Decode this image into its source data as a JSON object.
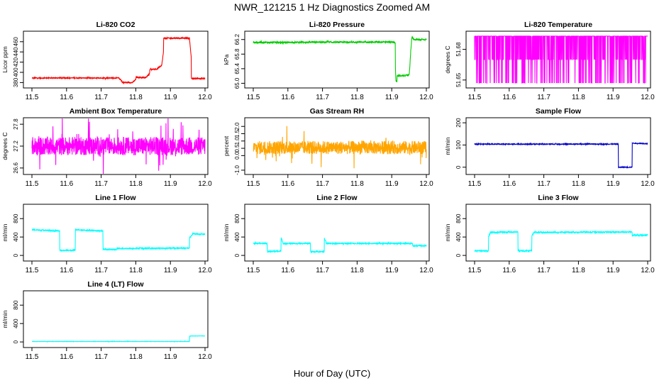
{
  "figure": {
    "title": "NWR_121215  1 Hz Diagnostics Zoomed AM",
    "xlabel": "Hour of Day (UTC)"
  },
  "chart_data": [
    {
      "type": "line",
      "title": "Li-820 CO2",
      "ylabel": "Licor ppm",
      "color": "#ff0000",
      "xlim": [
        11.5,
        12.0
      ],
      "ylim": [
        375,
        475
      ],
      "xticks": [
        "11.5",
        "11.6",
        "11.7",
        "11.8",
        "11.9",
        "12.0"
      ],
      "yticks": [
        {
          "v": 380,
          "label": "380"
        },
        {
          "v": 400,
          "label": "400"
        },
        {
          "v": 420,
          "label": "420"
        },
        {
          "v": 440,
          "label": "440"
        },
        {
          "v": 460,
          "label": "460"
        }
      ],
      "x": [
        11.5,
        11.75,
        11.75,
        11.76,
        11.76,
        11.79,
        11.79,
        11.8,
        11.8,
        11.83,
        11.83,
        11.84,
        11.84,
        11.86,
        11.86,
        11.875,
        11.875,
        11.88,
        11.88,
        11.955,
        11.955,
        11.96,
        11.96,
        12.0
      ],
      "y": [
        389,
        389,
        389,
        383,
        380,
        380,
        380,
        386,
        390,
        390,
        390,
        398,
        406,
        406,
        406,
        414,
        414,
        440,
        467,
        467,
        467,
        430,
        388,
        388
      ],
      "noise": 1.0
    },
    {
      "type": "line",
      "title": "Li-820 Pressure",
      "ylabel": "kPa",
      "color": "#00cc00",
      "xlim": [
        11.5,
        12.0
      ],
      "ylim": [
        64.95,
        66.35
      ],
      "xticks": [
        "11.5",
        "11.6",
        "11.7",
        "11.8",
        "11.9",
        "12.0"
      ],
      "yticks": [
        {
          "v": 65.0,
          "label": "65.0"
        },
        {
          "v": 65.4,
          "label": "65.4"
        },
        {
          "v": 65.8,
          "label": "65.8"
        },
        {
          "v": 66.2,
          "label": "66.2"
        }
      ],
      "x": [
        11.5,
        11.905,
        11.91,
        11.91,
        11.912,
        11.915,
        11.915,
        11.95,
        11.952,
        11.955,
        11.958,
        11.96,
        11.965,
        12.0
      ],
      "y": [
        66.12,
        66.13,
        66.1,
        65.6,
        65.05,
        65.05,
        65.2,
        65.22,
        65.4,
        65.9,
        66.25,
        66.25,
        66.2,
        66.2
      ],
      "noise": 0.02
    },
    {
      "type": "line",
      "title": "Li-820 Temperature",
      "ylabel": "degrees C",
      "color": "#ff00ff",
      "xlim": [
        11.5,
        12.0
      ],
      "ylim": [
        51.645,
        51.695
      ],
      "xticks": [
        "11.5",
        "11.6",
        "11.7",
        "11.8",
        "11.9",
        "12.0"
      ],
      "yticks": [
        {
          "v": 51.65,
          "label": "51.65"
        },
        {
          "v": 51.68,
          "label": "51.68"
        }
      ],
      "x": [
        11.5,
        12.0
      ],
      "y": [
        51.67,
        51.67
      ],
      "noise": 0.0,
      "levels": [
        51.647,
        51.67,
        51.693
      ]
    },
    {
      "type": "line",
      "title": "Ambient Box Temperature",
      "ylabel": "degrees C",
      "color": "#ff00ff",
      "xlim": [
        11.5,
        12.0
      ],
      "ylim": [
        26.5,
        27.9
      ],
      "xticks": [
        "11.5",
        "11.6",
        "11.7",
        "11.8",
        "11.9",
        "12.0"
      ],
      "yticks": [
        {
          "v": 26.6,
          "label": "26.6"
        },
        {
          "v": 27.2,
          "label": "27.2"
        },
        {
          "v": 27.8,
          "label": "27.8"
        }
      ],
      "x": [
        11.5,
        12.0
      ],
      "y": [
        27.2,
        27.2
      ],
      "noise": 0.25
    },
    {
      "type": "line",
      "title": "Gas Stream RH",
      "ylabel": "percent",
      "color": "#ffa500",
      "xlim": [
        11.5,
        12.0
      ],
      "ylim": [
        -1.1,
        2.4
      ],
      "xticks": [
        "11.5",
        "11.6",
        "11.7",
        "11.8",
        "11.9",
        "12.0"
      ],
      "yticks": [
        {
          "v": -1.0,
          "label": "-1.0"
        },
        {
          "v": 0.0,
          "label": "0.0"
        },
        {
          "v": 0.5,
          "label": "0.5"
        },
        {
          "v": 1.0,
          "label": "1.0"
        },
        {
          "v": 1.5,
          "label": "1.5"
        },
        {
          "v": 2.0,
          "label": "2.0"
        }
      ],
      "x": [
        11.5,
        12.0
      ],
      "y": [
        0.55,
        0.55
      ],
      "noise": 0.45
    },
    {
      "type": "line",
      "title": "Sample Flow",
      "ylabel": "ml/min",
      "color": "#0000cc",
      "xlim": [
        11.5,
        12.0
      ],
      "ylim": [
        -20,
        210
      ],
      "xticks": [
        "11.5",
        "11.6",
        "11.7",
        "11.8",
        "11.9",
        "12.0"
      ],
      "yticks": [
        {
          "v": 0,
          "label": "0"
        },
        {
          "v": 100,
          "label": "100"
        },
        {
          "v": 200,
          "label": "200"
        }
      ],
      "x": [
        11.5,
        11.91,
        11.915,
        11.915,
        11.95,
        11.955,
        11.955,
        11.96,
        12.0
      ],
      "y": [
        104,
        104,
        104,
        0,
        0,
        0,
        108,
        108,
        106
      ],
      "noise": 2
    },
    {
      "type": "line",
      "title": "Line 1 Flow",
      "ylabel": "ml/min",
      "color": "#00ffff",
      "xlim": [
        11.5,
        12.0
      ],
      "ylim": [
        -60,
        1050
      ],
      "xticks": [
        "11.5",
        "11.6",
        "11.7",
        "11.8",
        "11.9",
        "12.0"
      ],
      "yticks": [
        {
          "v": 0,
          "label": "0"
        },
        {
          "v": 400,
          "label": "400"
        },
        {
          "v": 800,
          "label": "800"
        }
      ],
      "x": [
        11.5,
        11.58,
        11.58,
        11.625,
        11.625,
        11.705,
        11.705,
        11.745,
        11.745,
        11.955,
        11.955,
        11.965,
        12.0
      ],
      "y": [
        560,
        530,
        110,
        110,
        560,
        530,
        130,
        130,
        150,
        160,
        380,
        470,
        460
      ],
      "noise": 12
    },
    {
      "type": "line",
      "title": "Line 2 Flow",
      "ylabel": "ml/min",
      "color": "#00ffff",
      "xlim": [
        11.5,
        12.0
      ],
      "ylim": [
        -60,
        1050
      ],
      "xticks": [
        "11.5",
        "11.6",
        "11.7",
        "11.8",
        "11.9",
        "12.0"
      ],
      "yticks": [
        {
          "v": 0,
          "label": "0"
        },
        {
          "v": 400,
          "label": "400"
        },
        {
          "v": 800,
          "label": "800"
        }
      ],
      "x": [
        11.5,
        11.54,
        11.54,
        11.58,
        11.58,
        11.585,
        11.585,
        11.665,
        11.665,
        11.705,
        11.705,
        11.71,
        11.71,
        11.96,
        11.96,
        12.0
      ],
      "y": [
        260,
        260,
        90,
        90,
        400,
        300,
        260,
        260,
        80,
        80,
        380,
        300,
        260,
        260,
        210,
        210
      ],
      "noise": 12
    },
    {
      "type": "line",
      "title": "Line 3 Flow",
      "ylabel": "ml/min",
      "color": "#00ffff",
      "xlim": [
        11.5,
        12.0
      ],
      "ylim": [
        -60,
        1050
      ],
      "xticks": [
        "11.5",
        "11.6",
        "11.7",
        "11.8",
        "11.9",
        "12.0"
      ],
      "yticks": [
        {
          "v": 0,
          "label": "0"
        },
        {
          "v": 400,
          "label": "400"
        },
        {
          "v": 800,
          "label": "800"
        }
      ],
      "x": [
        11.5,
        11.54,
        11.54,
        11.545,
        11.545,
        11.625,
        11.625,
        11.665,
        11.665,
        11.67,
        11.67,
        11.955,
        11.955,
        12.0
      ],
      "y": [
        100,
        100,
        400,
        480,
        500,
        510,
        100,
        100,
        430,
        470,
        500,
        510,
        440,
        440
      ],
      "noise": 14
    },
    {
      "type": "line",
      "title": "Line 4 (LT) Flow",
      "ylabel": "ml/min",
      "color": "#00ffff",
      "xlim": [
        11.5,
        12.0
      ],
      "ylim": [
        -60,
        1050
      ],
      "xticks": [
        "11.5",
        "11.6",
        "11.7",
        "11.8",
        "11.9",
        "12.0"
      ],
      "yticks": [
        {
          "v": 0,
          "label": "0"
        },
        {
          "v": 400,
          "label": "400"
        },
        {
          "v": 800,
          "label": "800"
        }
      ],
      "x": [
        11.5,
        11.955,
        11.955,
        12.0
      ],
      "y": [
        10,
        10,
        130,
        130
      ],
      "noise": 3
    }
  ]
}
